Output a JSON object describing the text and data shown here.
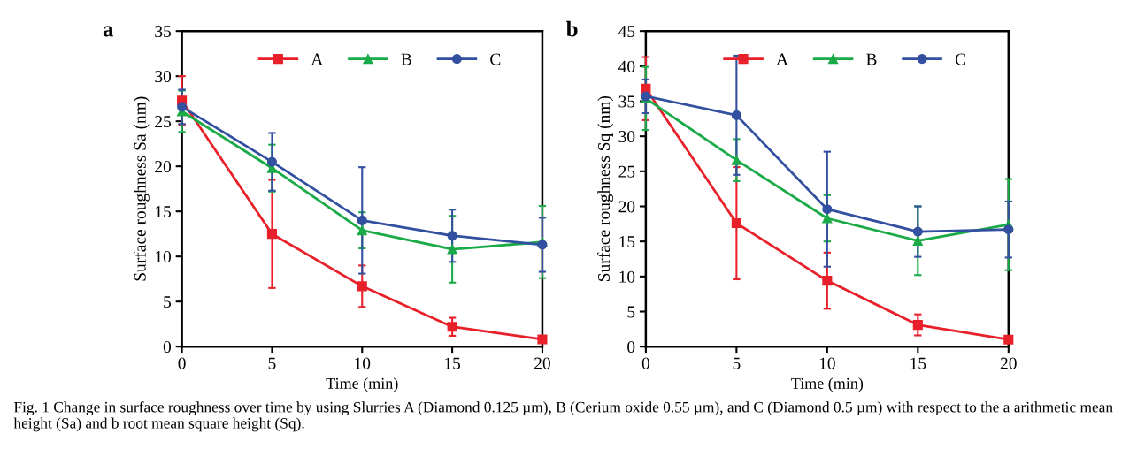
{
  "chart_data": [
    {
      "type": "line",
      "title": "a",
      "xlabel": "Time (min)",
      "ylabel": "Surface roughness Sa (nm)",
      "x": [
        0,
        5,
        10,
        15,
        20
      ],
      "xlim": [
        0,
        20
      ],
      "xticks": [
        0,
        5,
        10,
        15,
        20
      ],
      "ylim": [
        0,
        35
      ],
      "yticks": [
        0,
        5,
        10,
        15,
        20,
        25,
        30,
        35
      ],
      "legend": "top",
      "grid": false,
      "series": [
        {
          "name": "A",
          "color": "#e8202a",
          "marker": "square",
          "values": [
            27.3,
            12.5,
            6.7,
            2.2,
            0.8
          ],
          "errors": [
            2.7,
            6,
            2.3,
            1,
            0.3
          ]
        },
        {
          "name": "B",
          "color": "#1aaa48",
          "marker": "triangle",
          "values": [
            26.1,
            19.8,
            12.9,
            10.8,
            11.6
          ],
          "errors": [
            2.3,
            2.6,
            2,
            3.7,
            4
          ]
        },
        {
          "name": "C",
          "color": "#3350a0",
          "marker": "circle",
          "values": [
            26.6,
            20.5,
            14.0,
            12.3,
            11.3
          ],
          "errors": [
            1.9,
            3.2,
            5.9,
            2.9,
            3
          ]
        }
      ],
      "annotations": [
        "Fig. 1 Change in surface roughness over time by using Slurries A (Diamond 0.125 µm), B (Cerium oxide 0.55 µm), and C (Diamond 0.5 µm) with respect to the a arithmetic mean height (Sa) and b root mean square height (Sq)."
      ]
    },
    {
      "type": "line",
      "title": "b",
      "xlabel": "Time (min)",
      "ylabel": "Surface roughness Sq (nm)",
      "x": [
        0,
        5,
        10,
        15,
        20
      ],
      "xlim": [
        0,
        20
      ],
      "xticks": [
        0,
        5,
        10,
        15,
        20
      ],
      "ylim": [
        0,
        45
      ],
      "yticks": [
        0,
        5,
        10,
        15,
        20,
        25,
        30,
        35,
        40,
        45
      ],
      "legend": "top",
      "grid": false,
      "series": [
        {
          "name": "A",
          "color": "#e8202a",
          "marker": "square",
          "values": [
            36.8,
            17.6,
            9.4,
            3.1,
            1.0
          ],
          "errors": [
            4.5,
            8,
            4,
            1.5,
            0.3
          ]
        },
        {
          "name": "B",
          "color": "#1aaa48",
          "marker": "triangle",
          "values": [
            35.4,
            26.6,
            18.3,
            15.1,
            17.4
          ],
          "errors": [
            4.5,
            3,
            3.3,
            4.9,
            6.5
          ]
        },
        {
          "name": "C",
          "color": "#3350a0",
          "marker": "circle",
          "values": [
            35.7,
            33.0,
            19.6,
            16.4,
            16.7
          ],
          "errors": [
            2.4,
            8.5,
            8.2,
            3.6,
            4
          ]
        }
      ]
    }
  ]
}
